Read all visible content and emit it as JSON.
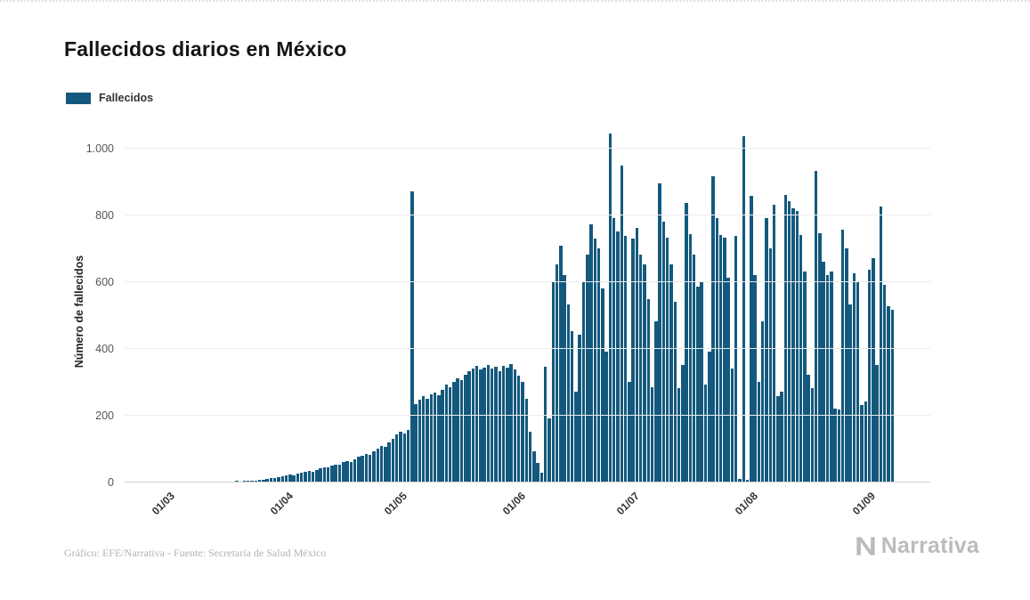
{
  "header": {
    "title": "Fallecidos diarios en México"
  },
  "legend": {
    "label": "Fallecidos"
  },
  "footer": {
    "credit": "Gráfico: EFE/Narrativa - Fuente: Secretaría de Salud México",
    "brand": "Narrativa"
  },
  "colors": {
    "bar": "#14597d",
    "brand_gray": "#b9bcbe"
  },
  "chart_data": {
    "type": "bar",
    "title": "Fallecidos diarios en México",
    "series_name": "Fallecidos",
    "xlabel": "",
    "ylabel": "Número de fallecidos",
    "ylim": [
      0,
      1050
    ],
    "grid": "horizontal",
    "legend_position": "top-left",
    "yticks": [
      0,
      200,
      400,
      600,
      800,
      1000
    ],
    "ytick_labels": [
      "0",
      "200",
      "400",
      "600",
      "800",
      "1.000"
    ],
    "xtick_labels": [
      "01/03",
      "01/04",
      "01/05",
      "01/06",
      "01/07",
      "01/08",
      "01/09"
    ],
    "xtick_indices": [
      11,
      42,
      72,
      103,
      133,
      164,
      195
    ],
    "x_start": "19/02",
    "x_end": "07/09",
    "values": [
      0,
      0,
      0,
      0,
      0,
      0,
      0,
      0,
      0,
      0,
      0,
      0,
      0,
      0,
      0,
      0,
      0,
      0,
      0,
      0,
      0,
      0,
      0,
      0,
      0,
      0,
      0,
      0,
      1,
      2,
      1,
      2,
      3,
      4,
      4,
      5,
      6,
      8,
      10,
      12,
      14,
      16,
      18,
      22,
      20,
      25,
      28,
      30,
      33,
      30,
      36,
      40,
      44,
      42,
      48,
      52,
      50,
      58,
      62,
      60,
      68,
      74,
      78,
      84,
      80,
      92,
      100,
      108,
      104,
      118,
      128,
      142,
      150,
      145,
      155,
      870,
      232,
      245,
      255,
      248,
      262,
      268,
      258,
      275,
      290,
      282,
      298,
      310,
      305,
      320,
      332,
      340,
      348,
      335,
      342,
      350,
      338,
      345,
      330,
      348,
      342,
      352,
      335,
      318,
      300,
      248,
      150,
      92,
      55,
      28,
      345,
      190,
      598,
      650,
      708,
      620,
      530,
      450,
      270,
      440,
      600,
      680,
      772,
      728,
      700,
      580,
      390,
      1044,
      790,
      750,
      947,
      735,
      300,
      728,
      760,
      680,
      650,
      548,
      282,
      480,
      893,
      780,
      730,
      650,
      540,
      280,
      350,
      836,
      742,
      680,
      585,
      600,
      292,
      390,
      915,
      790,
      738,
      730,
      610,
      340,
      735,
      8,
      1035,
      6,
      855,
      620,
      300,
      480,
      790,
      700,
      830,
      255,
      270,
      860,
      840,
      820,
      810,
      740,
      630,
      320,
      280,
      930,
      745,
      660,
      620,
      630,
      220,
      215,
      755,
      700,
      530,
      625,
      600,
      230,
      240,
      635,
      670,
      350,
      825,
      590,
      525,
      515
    ]
  }
}
